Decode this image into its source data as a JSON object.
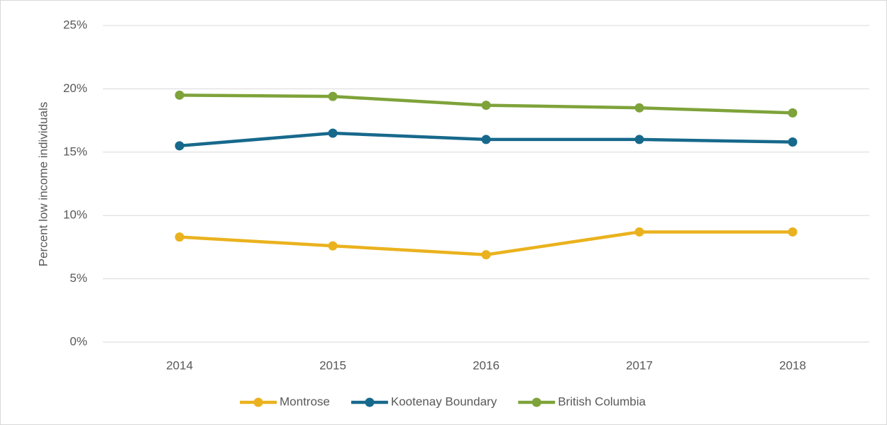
{
  "chart_data": {
    "type": "line",
    "y_label": "Percent low income individuals",
    "categories": [
      "2014",
      "2015",
      "2016",
      "2017",
      "2018"
    ],
    "series": [
      {
        "name": "Montrose",
        "color": "#eab21e",
        "values": [
          8.3,
          7.6,
          6.9,
          8.7,
          8.7
        ]
      },
      {
        "name": "Kootenay Boundary",
        "color": "#17698c",
        "values": [
          15.5,
          16.5,
          16.0,
          16.0,
          15.8
        ]
      },
      {
        "name": "British Columbia",
        "color": "#7ea33a",
        "values": [
          19.5,
          19.4,
          18.7,
          18.5,
          18.1
        ]
      }
    ],
    "ylim": [
      0,
      25
    ],
    "yticks": [
      {
        "value": 0,
        "label": "0%"
      },
      {
        "value": 5,
        "label": "5%"
      },
      {
        "value": 10,
        "label": "10%"
      },
      {
        "value": 15,
        "label": "15%"
      },
      {
        "value": 20,
        "label": "20%"
      },
      {
        "value": 25,
        "label": "25%"
      }
    ],
    "grid": true,
    "legend": "bottom"
  }
}
